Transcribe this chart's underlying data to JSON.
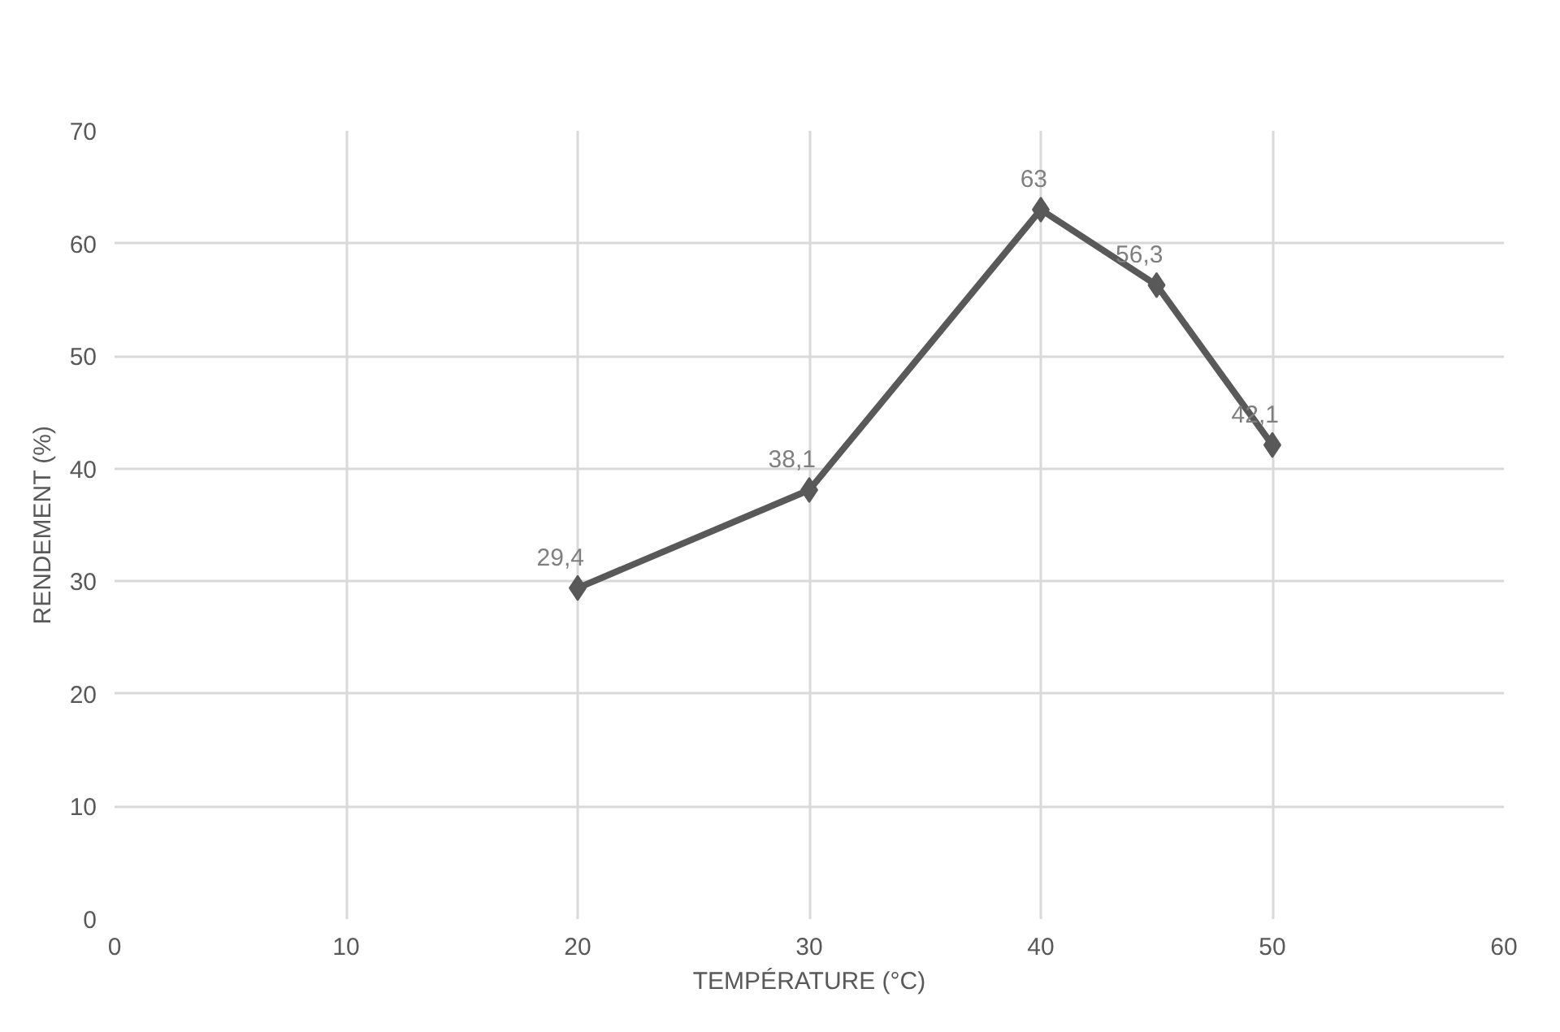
{
  "chart_data": {
    "type": "line",
    "xlabel": "TEMPÉRATURE (°C)",
    "ylabel": "RENDEMENT (%)",
    "x": [
      20,
      30,
      40,
      45,
      50
    ],
    "series": [
      {
        "color": "#595959",
        "values": [
          29.4,
          38.1,
          63,
          56.3,
          42.1
        ],
        "value_labels": [
          "29,4",
          "38,1",
          "63",
          "56,3",
          "42,1"
        ]
      }
    ],
    "xlim": [
      0,
      60
    ],
    "xticks": [
      0,
      10,
      20,
      30,
      40,
      50,
      60
    ],
    "ylim": [
      0,
      70
    ],
    "yticks": [
      0,
      10,
      20,
      30,
      40,
      50,
      60,
      70
    ],
    "grid": true,
    "marker": "diamond",
    "line_style": "solid"
  }
}
